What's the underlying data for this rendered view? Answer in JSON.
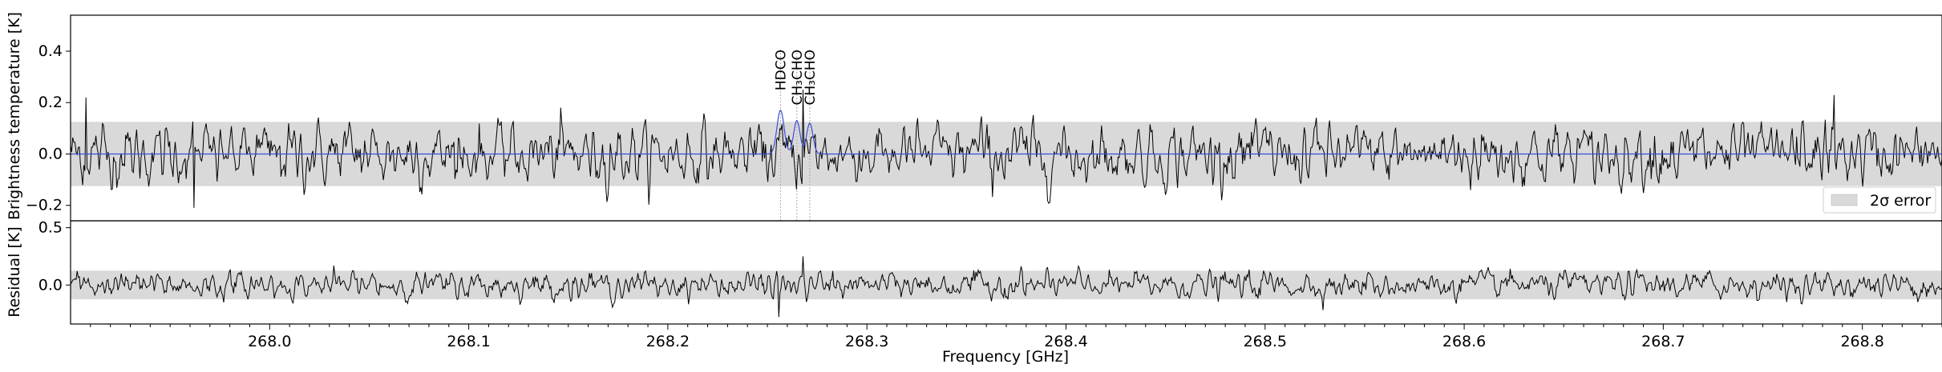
{
  "chart_data": [
    {
      "type": "line",
      "panel": "spectrum",
      "xlabel": "",
      "ylabel": "Brightness temperature [K]",
      "xlim": [
        267.9,
        268.84
      ],
      "ylim": [
        -0.26,
        0.54
      ],
      "yticks": [
        -0.2,
        0.0,
        0.2,
        0.4
      ],
      "ytick_labels": [
        "−0.2",
        "0.0",
        "0.2",
        "0.4"
      ],
      "error_band": [
        -0.125,
        0.125
      ],
      "legend": {
        "label": "2σ error",
        "placement": "lower right"
      },
      "line_markers": [
        {
          "label": "HDCO",
          "x": 268.2566
        },
        {
          "label": "CH₃CHO",
          "x": 268.2648
        },
        {
          "label": "CH₃CHO",
          "x": 268.2713
        }
      ],
      "series": [
        {
          "kind": "observed",
          "noise_rms": 0.062,
          "spike_values": [
            {
              "x": 267.908,
              "y": 0.22
            },
            {
              "x": 267.962,
              "y": -0.21
            },
            {
              "x": 268.268,
              "y": 0.25
            },
            {
              "x": 268.786,
              "y": 0.23
            }
          ]
        },
        {
          "kind": "model",
          "baseline": 0.0,
          "components": [
            {
              "center": 268.2566,
              "amplitude": 0.17,
              "width_ghz": 0.0018
            },
            {
              "center": 268.2648,
              "amplitude": 0.13,
              "width_ghz": 0.0016
            },
            {
              "center": 268.2713,
              "amplitude": 0.12,
              "width_ghz": 0.0016
            }
          ]
        }
      ],
      "colors": {
        "observed": "#000000",
        "model": "#3b4cdb",
        "band": "#d9d9d9",
        "markers": "#aaaaaa"
      }
    },
    {
      "type": "line",
      "panel": "residual",
      "xlabel": "Frequency [GHz]",
      "ylabel": "Residual [K]",
      "xlim": [
        267.9,
        268.84
      ],
      "ylim": [
        -0.34,
        0.56
      ],
      "yticks": [
        0.0,
        0.5
      ],
      "ytick_labels": [
        "0.0",
        "0.5"
      ],
      "xticks": [
        268.0,
        268.1,
        268.2,
        268.3,
        268.4,
        268.5,
        268.6,
        268.7,
        268.8
      ],
      "xtick_labels": [
        "268.0",
        "268.1",
        "268.2",
        "268.3",
        "268.4",
        "268.5",
        "268.6",
        "268.7",
        "268.8"
      ],
      "error_band": [
        -0.125,
        0.125
      ],
      "series": [
        {
          "kind": "residual",
          "noise_rms": 0.06,
          "spike_values": [
            {
              "x": 268.268,
              "y": 0.25
            },
            {
              "x": 268.256,
              "y": -0.28
            }
          ]
        }
      ]
    }
  ]
}
